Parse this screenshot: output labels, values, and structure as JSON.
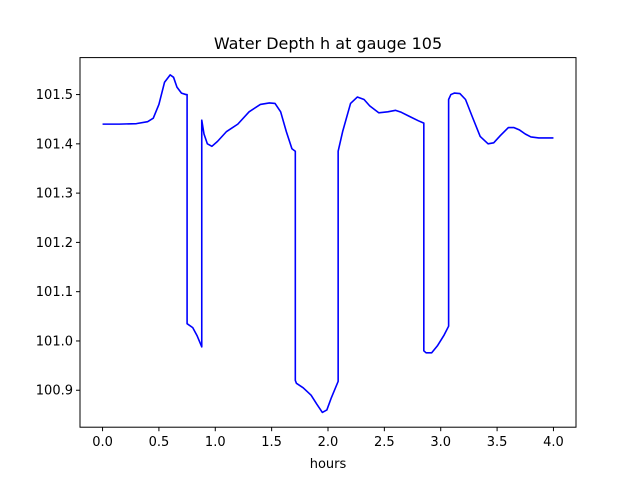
{
  "chart_data": {
    "type": "line",
    "title": "Water Depth h at gauge 105",
    "xlabel": "hours",
    "ylabel": "",
    "xlim": [
      -0.2,
      4.2
    ],
    "ylim": [
      100.825,
      101.575
    ],
    "grid": false,
    "xticks": [
      0.0,
      0.5,
      1.0,
      1.5,
      2.0,
      2.5,
      3.0,
      3.5,
      4.0
    ],
    "xtick_labels": [
      "0.0",
      "0.5",
      "1.0",
      "1.5",
      "2.0",
      "2.5",
      "3.0",
      "3.5",
      "4.0"
    ],
    "yticks": [
      100.9,
      101.0,
      101.1,
      101.2,
      101.3,
      101.4,
      101.5
    ],
    "ytick_labels": [
      "100.9",
      "101.0",
      "101.1",
      "101.2",
      "101.3",
      "101.4",
      "101.5"
    ],
    "series": [
      {
        "color": "#0000ff",
        "x": [
          0.0,
          0.15,
          0.3,
          0.4,
          0.45,
          0.5,
          0.55,
          0.6,
          0.63,
          0.66,
          0.7,
          0.74,
          0.75,
          0.75,
          0.8,
          0.84,
          0.88,
          0.88,
          0.9,
          0.93,
          0.97,
          1.02,
          1.1,
          1.2,
          1.3,
          1.4,
          1.48,
          1.53,
          1.58,
          1.63,
          1.68,
          1.71,
          1.71,
          1.72,
          1.78,
          1.85,
          1.9,
          1.95,
          1.99,
          2.03,
          2.09,
          2.09,
          2.13,
          2.2,
          2.26,
          2.32,
          2.37,
          2.45,
          2.53,
          2.6,
          2.65,
          2.72,
          2.8,
          2.85,
          2.85,
          2.87,
          2.92,
          2.97,
          3.03,
          3.07,
          3.07,
          3.09,
          3.12,
          3.17,
          3.22,
          3.28,
          3.35,
          3.42,
          3.47,
          3.53,
          3.6,
          3.65,
          3.7,
          3.75,
          3.8,
          3.87,
          3.93,
          4.0
        ],
        "y": [
          101.44,
          101.44,
          101.441,
          101.445,
          101.452,
          101.48,
          101.525,
          101.54,
          101.535,
          101.515,
          101.503,
          101.5,
          101.5,
          101.035,
          101.027,
          101.01,
          100.988,
          101.448,
          101.42,
          101.4,
          101.395,
          101.405,
          101.425,
          101.44,
          101.465,
          101.48,
          101.483,
          101.482,
          101.465,
          101.425,
          101.39,
          101.385,
          100.92,
          100.914,
          100.905,
          100.89,
          100.872,
          100.855,
          100.86,
          100.885,
          100.918,
          101.385,
          101.425,
          101.482,
          101.495,
          101.49,
          101.477,
          101.463,
          101.465,
          101.468,
          101.464,
          101.456,
          101.447,
          101.442,
          100.98,
          100.976,
          100.976,
          100.99,
          101.012,
          101.03,
          101.49,
          101.5,
          101.503,
          101.502,
          101.49,
          101.455,
          101.415,
          101.4,
          101.402,
          101.417,
          101.433,
          101.433,
          101.428,
          101.42,
          101.414,
          101.412,
          101.412,
          101.412
        ]
      }
    ]
  }
}
